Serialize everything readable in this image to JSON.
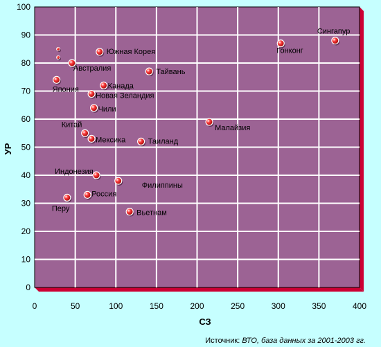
{
  "chart_data": {
    "type": "scatter",
    "xlabel": "СЗ",
    "ylabel": "УР",
    "xlim": [
      0,
      400
    ],
    "ylim": [
      0,
      100
    ],
    "x_ticks": [
      0,
      50,
      100,
      150,
      200,
      250,
      300,
      350,
      400
    ],
    "y_ticks": [
      0,
      10,
      20,
      30,
      40,
      50,
      60,
      70,
      80,
      90,
      100
    ],
    "grid": true,
    "colors": {
      "plot_bg": "#9c6394",
      "grid": "#ffffff",
      "frame": "#cc0033",
      "marker": "#cc0000",
      "background": "#c6ffff"
    },
    "points": [
      {
        "label": "Сингапур",
        "x": 370,
        "y": 88
      },
      {
        "label": "Гонконг",
        "x": 303,
        "y": 87
      },
      {
        "label": "Южная Корея",
        "x": 80,
        "y": 84
      },
      {
        "label": "",
        "x": 29,
        "y": 85
      },
      {
        "label": "",
        "x": 29,
        "y": 82
      },
      {
        "label": "Австралия",
        "x": 46,
        "y": 80
      },
      {
        "label": "Тайвань",
        "x": 141,
        "y": 77
      },
      {
        "label": "Япония",
        "x": 27,
        "y": 74
      },
      {
        "label": "Канада",
        "x": 85,
        "y": 72
      },
      {
        "label": "Новая Зеландия",
        "x": 70,
        "y": 69
      },
      {
        "label": "Чили",
        "x": 73,
        "y": 64
      },
      {
        "label": "Малайзия",
        "x": 215,
        "y": 59
      },
      {
        "label": "Китай",
        "x": 62,
        "y": 55
      },
      {
        "label": "Мексика",
        "x": 70,
        "y": 53
      },
      {
        "label": "Таиланд",
        "x": 131,
        "y": 52
      },
      {
        "label": "Индонезия",
        "x": 76,
        "y": 40
      },
      {
        "label": "Филиппины",
        "x": 103,
        "y": 38
      },
      {
        "label": "Россия",
        "x": 65,
        "y": 33
      },
      {
        "label": "Перу",
        "x": 40,
        "y": 32
      },
      {
        "label": "Вьетнам",
        "x": 117,
        "y": 27
      }
    ]
  },
  "source_prefix": "Источник: ",
  "source_text": "ВТО, база данных за 2001-2003 гг."
}
